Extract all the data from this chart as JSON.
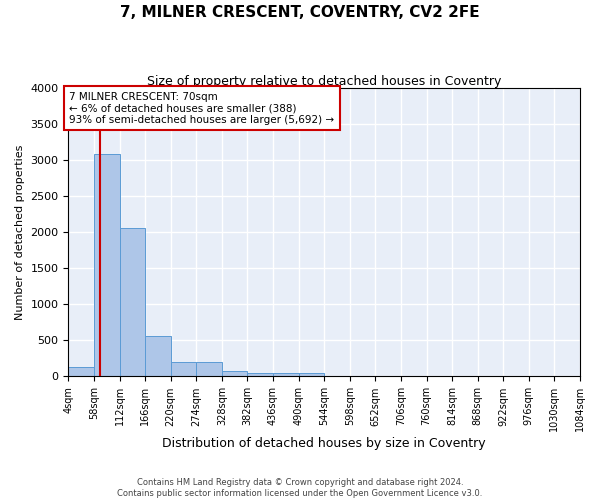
{
  "title": "7, MILNER CRESCENT, COVENTRY, CV2 2FE",
  "subtitle": "Size of property relative to detached houses in Coventry",
  "xlabel": "Distribution of detached houses by size in Coventry",
  "ylabel": "Number of detached properties",
  "bins": [
    4,
    58,
    112,
    166,
    220,
    274,
    328,
    382,
    436,
    490,
    544,
    598,
    652,
    706,
    760,
    814,
    868,
    922,
    976,
    1030,
    1084
  ],
  "bin_labels": [
    "4sqm",
    "58sqm",
    "112sqm",
    "166sqm",
    "220sqm",
    "274sqm",
    "328sqm",
    "382sqm",
    "436sqm",
    "490sqm",
    "544sqm",
    "598sqm",
    "652sqm",
    "706sqm",
    "760sqm",
    "814sqm",
    "868sqm",
    "922sqm",
    "976sqm",
    "1030sqm",
    "1084sqm"
  ],
  "bar_heights": [
    130,
    3080,
    2060,
    560,
    195,
    195,
    75,
    55,
    55,
    50,
    0,
    0,
    0,
    0,
    0,
    0,
    0,
    0,
    0,
    0
  ],
  "bar_color": "#aec6e8",
  "bar_edge_color": "#5b9bd5",
  "property_line_x": 70,
  "property_line_color": "#cc0000",
  "annotation_text": "7 MILNER CRESCENT: 70sqm\n← 6% of detached houses are smaller (388)\n93% of semi-detached houses are larger (5,692) →",
  "annotation_box_color": "#cc0000",
  "ylim": [
    0,
    4000
  ],
  "yticks": [
    0,
    500,
    1000,
    1500,
    2000,
    2500,
    3000,
    3500,
    4000
  ],
  "background_color": "#e8eef8",
  "grid_color": "#ffffff",
  "footer_line1": "Contains HM Land Registry data © Crown copyright and database right 2024.",
  "footer_line2": "Contains public sector information licensed under the Open Government Licence v3.0."
}
